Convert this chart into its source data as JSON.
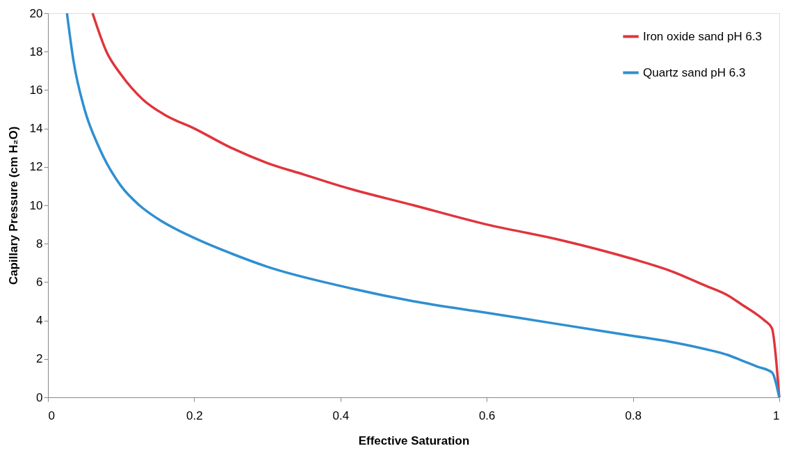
{
  "chart_data": {
    "type": "line",
    "xlabel": "Effective Saturation",
    "ylabel": "Capillary Pressure (cm H₂O)",
    "xlim": [
      0,
      1
    ],
    "ylim": [
      0,
      20
    ],
    "xticks": [
      0,
      0.2,
      0.4,
      0.6,
      0.8,
      1
    ],
    "yticks": [
      0,
      2,
      4,
      6,
      8,
      10,
      12,
      14,
      16,
      18,
      20
    ],
    "grid": false,
    "legend": "top right",
    "marker": "none",
    "line_style": "solid",
    "series": [
      {
        "name": "Iron oxide sand  pH 6.3",
        "color": "#e0343c",
        "x": [
          0.061,
          0.08,
          0.1,
          0.13,
          0.16,
          0.2,
          0.25,
          0.3,
          0.35,
          0.4,
          0.5,
          0.6,
          0.7,
          0.8,
          0.85,
          0.9,
          0.93,
          0.95,
          0.97,
          0.98,
          0.99,
          1.0
        ],
        "values": [
          20,
          18,
          16.8,
          15.5,
          14.7,
          14,
          13,
          12.2,
          11.6,
          11,
          10,
          9,
          8.2,
          7.2,
          6.6,
          5.8,
          5.3,
          4.8,
          4.3,
          4.0,
          3.6,
          0
        ]
      },
      {
        "name": "Quartz sand pH 6.3",
        "color": "#2f8fd1",
        "x": [
          0.026,
          0.035,
          0.05,
          0.07,
          0.1,
          0.125,
          0.15,
          0.2,
          0.25,
          0.3,
          0.4,
          0.5,
          0.6,
          0.7,
          0.8,
          0.85,
          0.9,
          0.93,
          0.95,
          0.97,
          0.99,
          1.0
        ],
        "values": [
          20,
          17.5,
          15,
          13,
          11,
          10,
          9.3,
          8.3,
          7.5,
          6.8,
          5.8,
          5.0,
          4.4,
          3.8,
          3.2,
          2.9,
          2.5,
          2.2,
          1.9,
          1.6,
          1.3,
          0
        ]
      }
    ]
  }
}
